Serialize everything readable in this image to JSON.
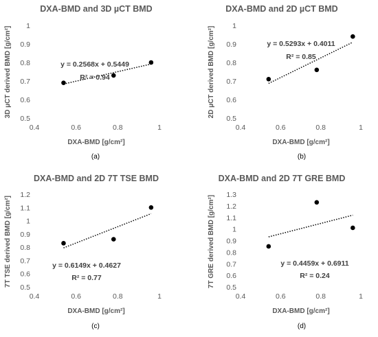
{
  "chart_data": [
    {
      "type": "scatter",
      "title": "DXA-BMD and 3D µCT BMD",
      "xlabel": "DXA-BMD [g/cm²]",
      "ylabel": "3D µCT derived BMD [g/cm²]",
      "x": [
        0.54,
        0.78,
        0.96
      ],
      "y": [
        0.69,
        0.73,
        0.8
      ],
      "xlim": [
        0.4,
        1
      ],
      "ylim": [
        0.5,
        1
      ],
      "xticks": [
        "0.4",
        "0.6",
        "0.8",
        "1"
      ],
      "yticks": [
        "0.5",
        "0.6",
        "0.7",
        "0.8",
        "0.9",
        "1"
      ],
      "trendline": {
        "slope": 0.2568,
        "intercept": 0.5449
      },
      "equation": "y = 0.2568x + 0.5449",
      "r2": "R² = 0.94",
      "caption": "(a)"
    },
    {
      "type": "scatter",
      "title": "DXA-BMD and 2D µCT BMD",
      "xlabel": "DXA-BMD [g/cm²]",
      "ylabel": "2D µCT derived BMD [g/cm²]",
      "x": [
        0.54,
        0.78,
        0.96
      ],
      "y": [
        0.71,
        0.76,
        0.94
      ],
      "xlim": [
        0.4,
        1
      ],
      "ylim": [
        0.5,
        1
      ],
      "xticks": [
        "0.4",
        "0.6",
        "0.8",
        "1"
      ],
      "yticks": [
        "0.5",
        "0.6",
        "0.7",
        "0.8",
        "0.9",
        "1"
      ],
      "trendline": {
        "slope": 0.5293,
        "intercept": 0.4011
      },
      "equation": "y = 0.5293x + 0.4011",
      "r2": "R² = 0.85",
      "caption": "(b)"
    },
    {
      "type": "scatter",
      "title": "DXA-BMD and 2D 7T TSE BMD",
      "xlabel": "DXA-BMD [g/cm²]",
      "ylabel": "7T TSE derived BMD [g/cm²]",
      "x": [
        0.54,
        0.78,
        0.96
      ],
      "y": [
        0.83,
        0.86,
        1.1
      ],
      "xlim": [
        0.4,
        1
      ],
      "ylim": [
        0.5,
        1.2
      ],
      "xticks": [
        "0.4",
        "0.6",
        "0.8",
        "1"
      ],
      "yticks": [
        "0.5",
        "0.6",
        "0.7",
        "0.8",
        "0.9",
        "1",
        "1.1",
        "1.2"
      ],
      "trendline": {
        "slope": 0.6149,
        "intercept": 0.4627
      },
      "equation": "y = 0.6149x + 0.4627",
      "r2": "R² = 0.77",
      "caption": "(c)"
    },
    {
      "type": "scatter",
      "title": "DXA-BMD and 2D 7T GRE BMD",
      "xlabel": "DXA-BMD [g/cm²]",
      "ylabel": "7T GRE derived BMD [g/cm²]",
      "x": [
        0.54,
        0.78,
        0.96
      ],
      "y": [
        0.85,
        1.23,
        1.01
      ],
      "xlim": [
        0.4,
        1
      ],
      "ylim": [
        0.5,
        1.3
      ],
      "xticks": [
        "0.4",
        "0.6",
        "0.8",
        "1"
      ],
      "yticks": [
        "0.5",
        "0.6",
        "0.7",
        "0.8",
        "0.9",
        "1",
        "1.1",
        "1.2",
        "1.3"
      ],
      "trendline": {
        "slope": 0.4459,
        "intercept": 0.6911
      },
      "equation": "y = 0.4459x + 0.6911",
      "r2": "R² = 0.24",
      "caption": "(d)"
    }
  ]
}
